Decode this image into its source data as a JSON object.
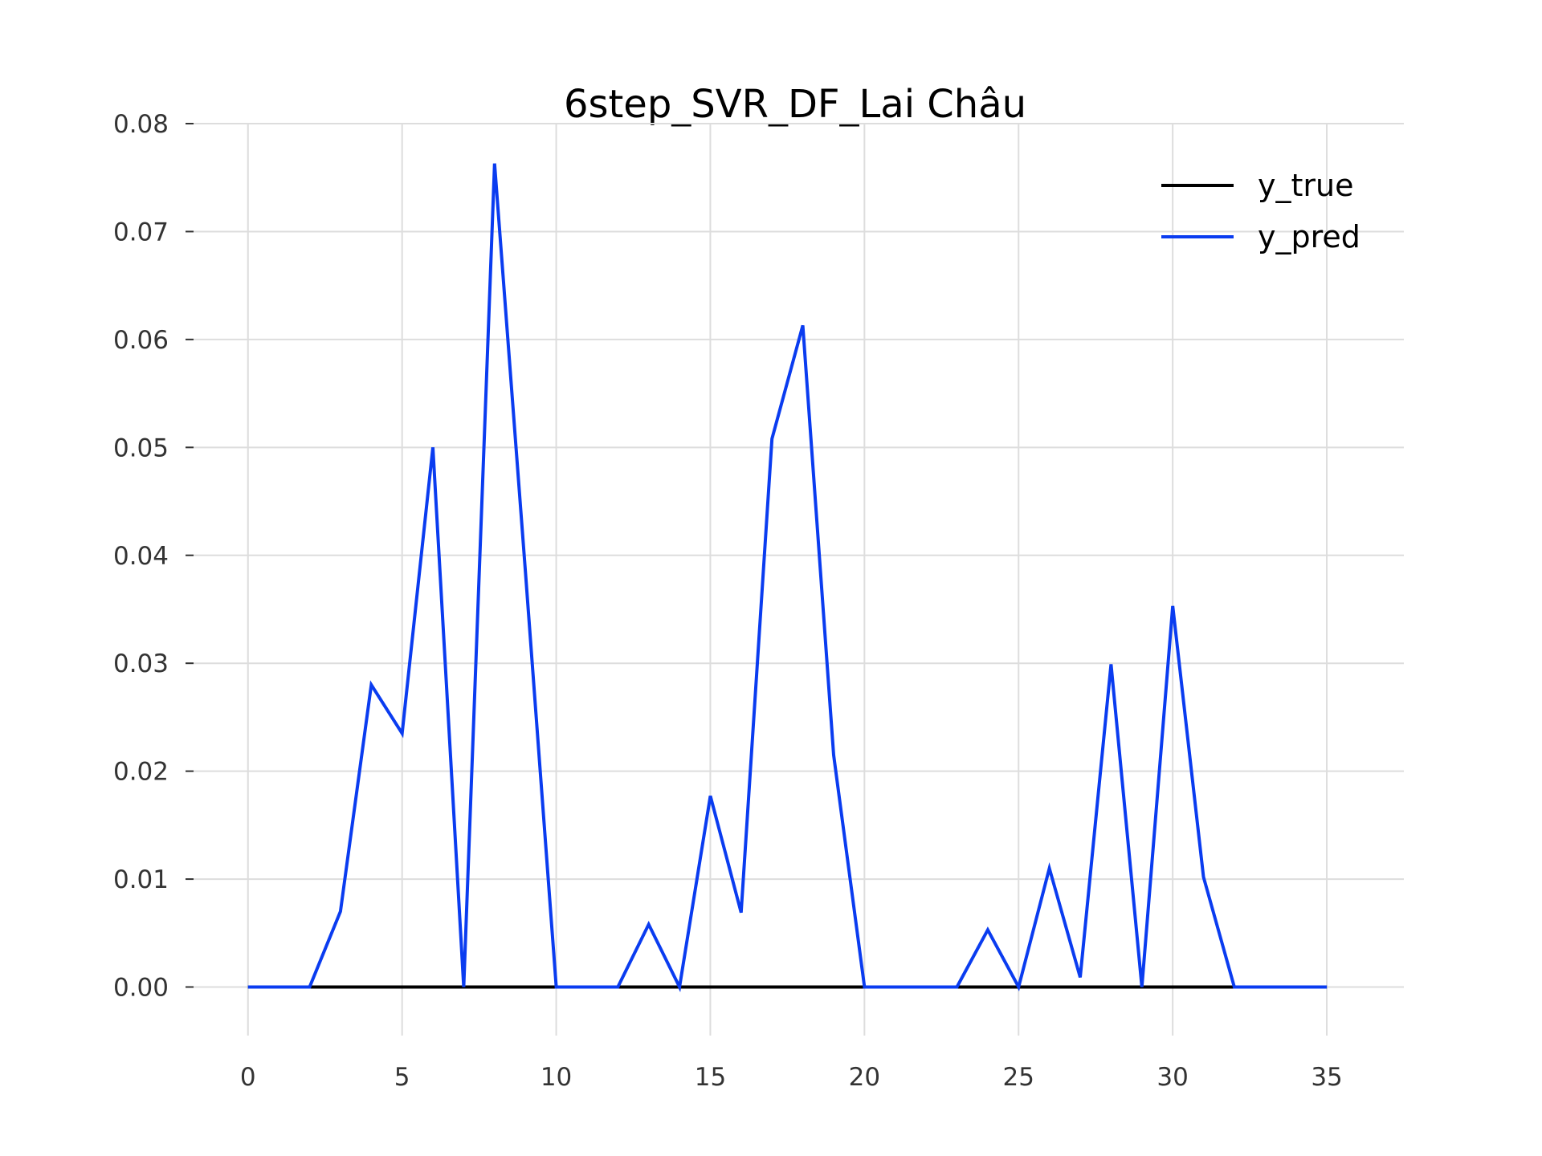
{
  "chart_data": {
    "type": "line",
    "title": "6step_SVR_DF_Lai Châu",
    "xlabel": "",
    "ylabel": "",
    "xlim": [
      -2,
      37.5
    ],
    "ylim": [
      -0.0045,
      0.08
    ],
    "x_ticks": [
      0,
      5,
      10,
      15,
      20,
      25,
      30,
      35
    ],
    "y_ticks": [
      0.0,
      0.01,
      0.02,
      0.03,
      0.04,
      0.05,
      0.06,
      0.07,
      0.08
    ],
    "y_tick_labels": [
      "0.00",
      "0.01",
      "0.02",
      "0.03",
      "0.04",
      "0.05",
      "0.06",
      "0.07",
      "0.08"
    ],
    "grid": true,
    "legend_position": "top-right",
    "x": [
      0,
      1,
      2,
      3,
      4,
      5,
      6,
      7,
      8,
      9,
      10,
      11,
      12,
      13,
      14,
      15,
      16,
      17,
      18,
      19,
      20,
      21,
      22,
      23,
      24,
      25,
      26,
      27,
      28,
      29,
      30,
      31,
      32,
      33,
      34,
      35
    ],
    "series": [
      {
        "name": "y_true",
        "color": "#000000",
        "values": [
          0,
          0,
          0,
          0,
          0,
          0,
          0,
          0,
          0,
          0,
          0,
          0,
          0,
          0,
          0,
          0,
          0,
          0,
          0,
          0,
          0,
          0,
          0,
          0,
          0,
          0,
          0,
          0,
          0,
          0,
          0,
          0,
          0,
          0,
          0,
          0
        ]
      },
      {
        "name": "y_pred",
        "color": "#0a3cf0",
        "values": [
          0,
          0,
          0,
          0.007,
          0.028,
          0.0235,
          0.05,
          0,
          0.0763,
          0.0385,
          0,
          0,
          0,
          0.0058,
          0,
          0.0177,
          0.0069,
          0.0508,
          0.0613,
          0.0215,
          0,
          0,
          0,
          0,
          0.0053,
          0,
          0.011,
          0.0009,
          0.0299,
          0,
          0.0353,
          0.0102,
          0,
          0,
          0,
          0
        ]
      }
    ]
  }
}
